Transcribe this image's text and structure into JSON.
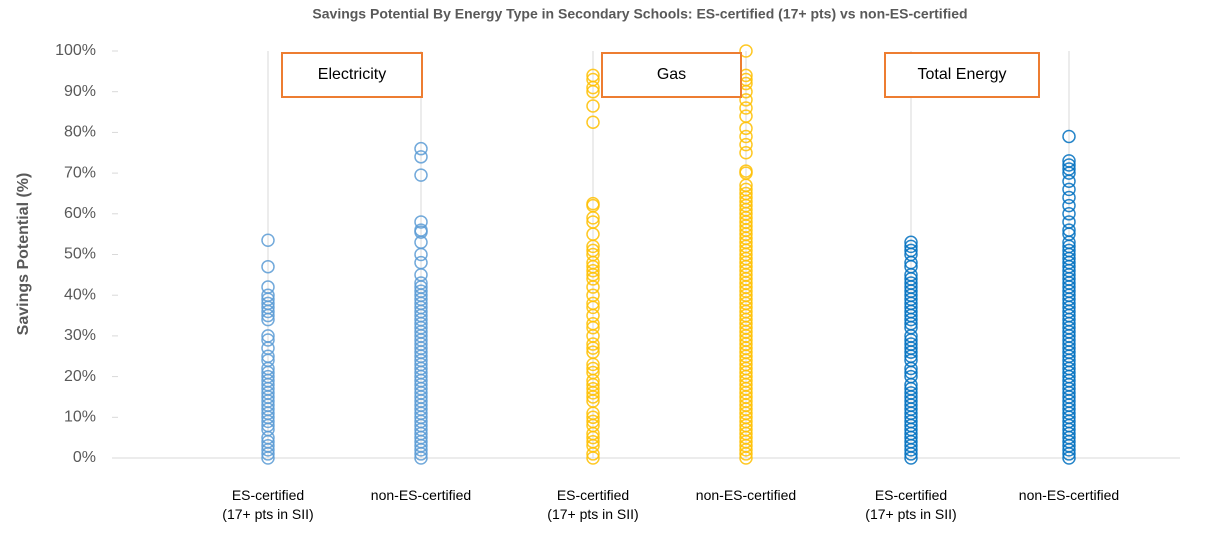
{
  "chart_data": {
    "type": "strip",
    "title": "Savings Potential By Energy Type in Secondary Schools: ES-certified (17+ pts) vs non-ES-certified",
    "y_label": "Savings Potential (%)",
    "categories": [
      "ES-certified (17+ pts in SII)",
      "non-ES-certified",
      "ES-certified (17+ pts in SII)",
      "non-ES-certified",
      "ES-certified (17+ pts in SII)",
      "non-ES-certified"
    ],
    "colors": [
      "#5b9bd5",
      "#5b9bd5",
      "#ffc000",
      "#ffc000",
      "#0070c0",
      "#0070c0"
    ],
    "annotations": [
      "Electricity",
      "Gas",
      "Total Energy"
    ],
    "values": [
      [
        53.5,
        47,
        42,
        40,
        39,
        38,
        37,
        36,
        35,
        34,
        30,
        29,
        27,
        25,
        24,
        22,
        21,
        20,
        19,
        18,
        17,
        16,
        15,
        14,
        13,
        12,
        11,
        10,
        9,
        8,
        7,
        5,
        4,
        3,
        2,
        1,
        0
      ],
      [
        76,
        74,
        69.5,
        58,
        56,
        55.5,
        53,
        50,
        48,
        45,
        43,
        42,
        41,
        40,
        39,
        38,
        37,
        36,
        35,
        34,
        33,
        32,
        31,
        30,
        29,
        28,
        27,
        26,
        25,
        24,
        23,
        22,
        21,
        20,
        19,
        18,
        17,
        16,
        15,
        14,
        13,
        12,
        11,
        10,
        9,
        8,
        7,
        6,
        5,
        4,
        3,
        2,
        1,
        0
      ],
      [
        94,
        93,
        91,
        90,
        86.5,
        82.5,
        62.5,
        62,
        59,
        58,
        55,
        52,
        51,
        50,
        48,
        47,
        46,
        45,
        44,
        42,
        40,
        38,
        37,
        35,
        33,
        32,
        30,
        28,
        27,
        26,
        23,
        22,
        21,
        19,
        18,
        17,
        16,
        15,
        14,
        11,
        10,
        9,
        8,
        6,
        5,
        4,
        3,
        1,
        0
      ],
      [
        100,
        94,
        93,
        92,
        90,
        88,
        86,
        84,
        81,
        79,
        77,
        75,
        70.5,
        70,
        67,
        66,
        65,
        64,
        63,
        62,
        61,
        60,
        59,
        58,
        57,
        56,
        55,
        54,
        53,
        52,
        51,
        50,
        49,
        48,
        47,
        46,
        45,
        44,
        43,
        42,
        41,
        40,
        39,
        38,
        37,
        36,
        35,
        34,
        33,
        32,
        31,
        30,
        29,
        28,
        27,
        26,
        25,
        24,
        23,
        22,
        21,
        20,
        19,
        18,
        17,
        16,
        15,
        14,
        13,
        12,
        11,
        10,
        9,
        8,
        7,
        6,
        5,
        4,
        3,
        2,
        1,
        0
      ],
      [
        53,
        52,
        51,
        50,
        48,
        47,
        45,
        44,
        43,
        42,
        41,
        40,
        39,
        38,
        37,
        36,
        35,
        34,
        33,
        32,
        30,
        29,
        28,
        27,
        26,
        25,
        24,
        22,
        21,
        20,
        18,
        17,
        16,
        15,
        14,
        13,
        12,
        11,
        10,
        9,
        8,
        7,
        6,
        5,
        4,
        3,
        2,
        1,
        0
      ],
      [
        79,
        73,
        72,
        71,
        70,
        68,
        66,
        64,
        62,
        60,
        58,
        56,
        55,
        53,
        52,
        51,
        50,
        49,
        48,
        47,
        46,
        45,
        44,
        43,
        42,
        41,
        40,
        39,
        38,
        37,
        36,
        35,
        34,
        33,
        32,
        31,
        30,
        29,
        28,
        27,
        26,
        25,
        24,
        23,
        22,
        21,
        20,
        19,
        18,
        17,
        16,
        15,
        14,
        13,
        12,
        11,
        10,
        9,
        8,
        7,
        6,
        5,
        4,
        3,
        2,
        1,
        0
      ]
    ],
    "ylim": [
      0,
      100
    ],
    "yticks": [
      {
        "value": 0,
        "label": "0%"
      },
      {
        "value": 10,
        "label": "10%"
      },
      {
        "value": 20,
        "label": "20%"
      },
      {
        "value": 30,
        "label": "30%"
      },
      {
        "value": 40,
        "label": "40%"
      },
      {
        "value": 50,
        "label": "50%"
      },
      {
        "value": 60,
        "label": "60%"
      },
      {
        "value": 70,
        "label": "70%"
      },
      {
        "value": 80,
        "label": "80%"
      },
      {
        "value": 90,
        "label": "90%"
      },
      {
        "value": 100,
        "label": "100%"
      }
    ]
  }
}
